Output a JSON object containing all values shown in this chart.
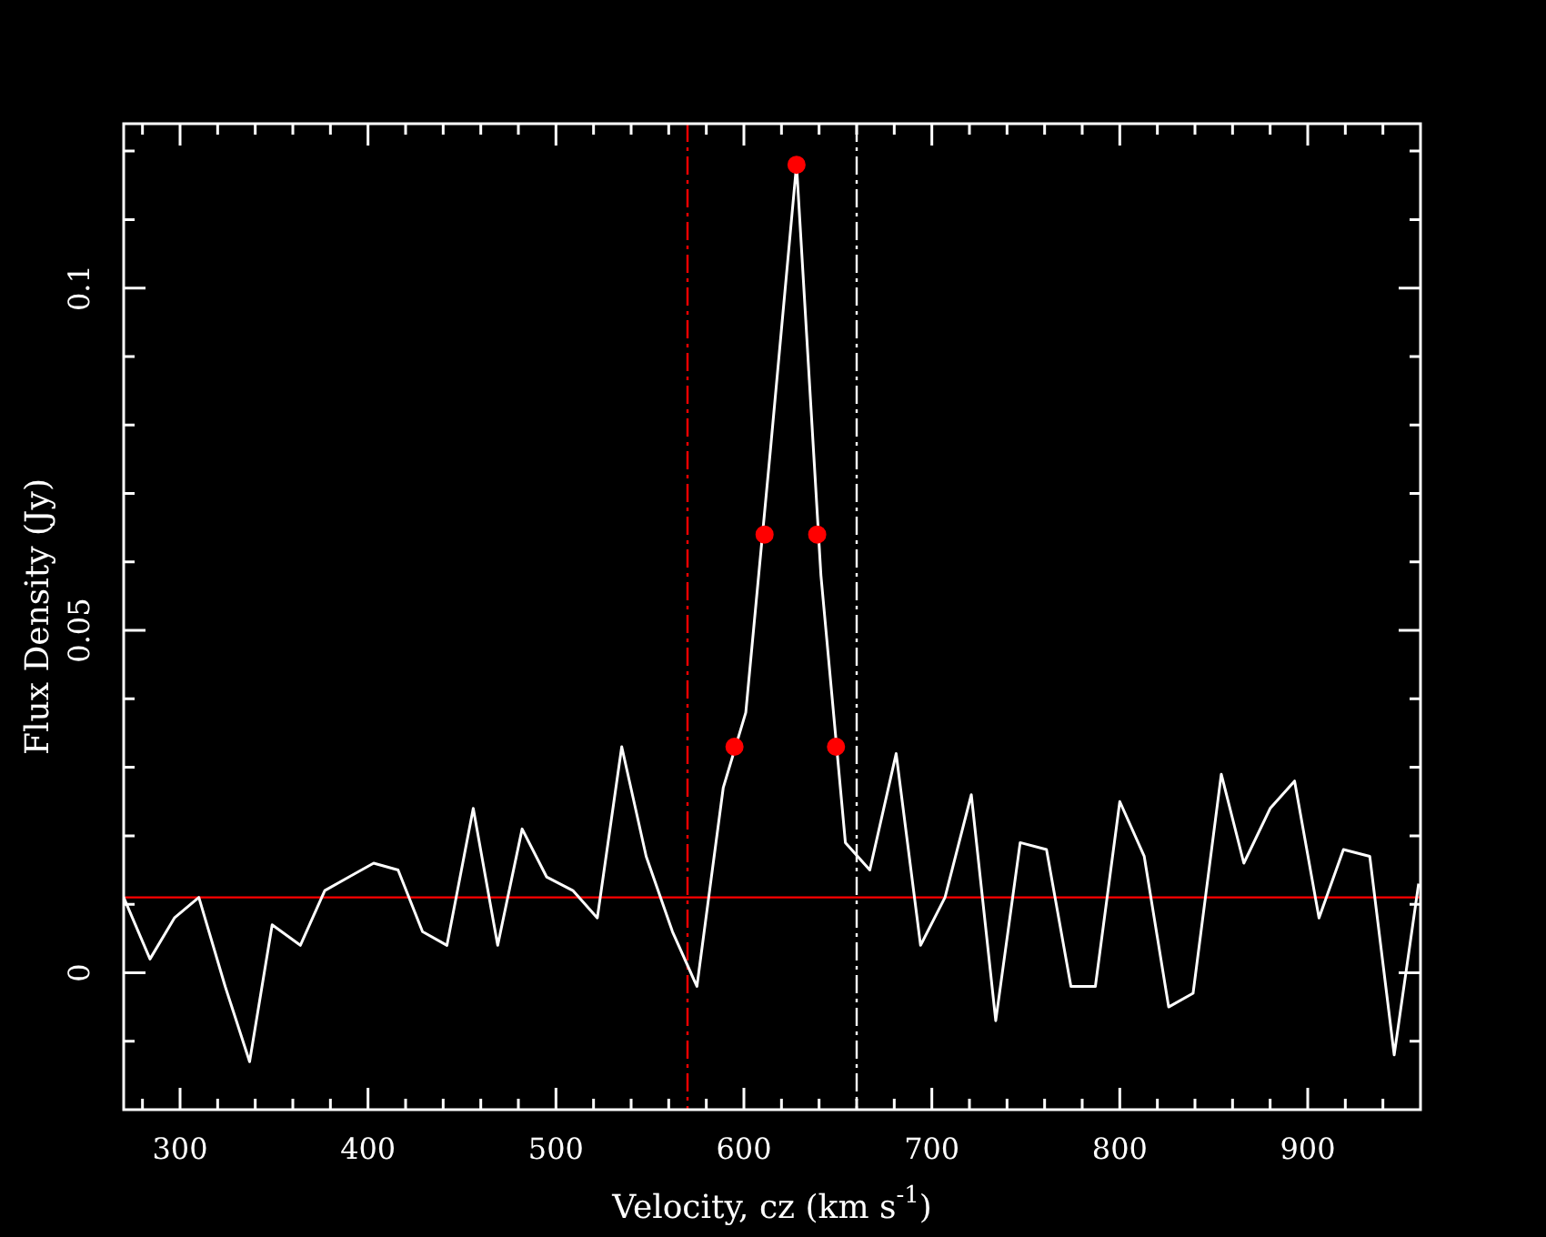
{
  "chart_data": {
    "type": "line",
    "xlabel": "Velocity, cz (km s$^{-1}$)",
    "ylabel": "Flux Density (Jy)",
    "xlim": [
      270,
      960
    ],
    "ylim": [
      -0.02,
      0.124
    ],
    "xticks": [
      {
        "value": 280,
        "label": null
      },
      300,
      {
        "value": 320,
        "label": null
      },
      {
        "value": 340,
        "label": null
      },
      {
        "value": 360,
        "label": null
      },
      {
        "value": 380,
        "label": null
      },
      400,
      {
        "value": 420,
        "label": null
      },
      {
        "value": 440,
        "label": null
      },
      {
        "value": 460,
        "label": null
      },
      {
        "value": 480,
        "label": null
      },
      500,
      {
        "value": 520,
        "label": null
      },
      {
        "value": 540,
        "label": null
      },
      {
        "value": 560,
        "label": null
      },
      {
        "value": 580,
        "label": null
      },
      600,
      {
        "value": 620,
        "label": null
      },
      {
        "value": 640,
        "label": null
      },
      {
        "value": 660,
        "label": null
      },
      {
        "value": 680,
        "label": null
      },
      700,
      {
        "value": 720,
        "label": null
      },
      {
        "value": 740,
        "label": null
      },
      {
        "value": 760,
        "label": null
      },
      {
        "value": 780,
        "label": null
      },
      800,
      {
        "value": 820,
        "label": null
      },
      {
        "value": 840,
        "label": null
      },
      {
        "value": 860,
        "label": null
      },
      {
        "value": 880,
        "label": null
      },
      900,
      {
        "value": 920,
        "label": null
      },
      {
        "value": 940,
        "label": null
      }
    ],
    "yticks": [
      {
        "value": -0.01,
        "label": null
      },
      0,
      {
        "value": 0.01,
        "label": null
      },
      {
        "value": 0.02,
        "label": null
      },
      {
        "value": 0.03,
        "label": null
      },
      {
        "value": 0.04,
        "label": null
      },
      0.05,
      {
        "value": 0.06,
        "label": null
      },
      {
        "value": 0.07,
        "label": null
      },
      {
        "value": 0.08,
        "label": null
      },
      {
        "value": 0.09,
        "label": null
      },
      0.1,
      {
        "value": 0.11,
        "label": null
      },
      {
        "value": 0.12,
        "label": null
      }
    ],
    "series": [
      {
        "type": "line",
        "color": "#ffffff",
        "x": [
          270,
          284,
          297,
          310,
          324,
          337,
          349,
          364,
          377,
          390,
          403,
          416,
          429,
          442,
          456,
          469,
          482,
          495,
          509,
          522,
          535,
          548,
          562,
          575,
          589,
          601,
          614,
          628,
          641,
          654,
          667,
          681,
          694,
          707,
          721,
          734,
          747,
          761,
          774,
          787,
          800,
          813,
          826,
          839,
          854,
          866,
          880,
          893,
          906,
          919,
          933,
          946,
          959
        ],
        "values": [
          0.011,
          0.002,
          0.008,
          0.011,
          -0.002,
          -0.013,
          0.007,
          0.004,
          0.012,
          0.014,
          0.016,
          0.015,
          0.006,
          0.004,
          0.024,
          0.004,
          0.021,
          0.014,
          0.012,
          0.008,
          0.033,
          0.017,
          0.006,
          -0.002,
          0.027,
          0.038,
          0.076,
          0.118,
          0.058,
          0.019,
          0.015,
          0.032,
          0.004,
          0.011,
          0.026,
          -0.007,
          0.019,
          0.018,
          -0.002,
          -0.002,
          0.025,
          0.017,
          -0.005,
          -0.003,
          0.029,
          0.016,
          0.024,
          0.028,
          0.008,
          0.018,
          0.017,
          -0.012,
          0.013
        ]
      },
      {
        "type": "scatter",
        "color": "#ff0000",
        "marker": "circle",
        "x": [
          595,
          611,
          628,
          639,
          649
        ],
        "values": [
          0.033,
          0.064,
          0.118,
          0.064,
          0.033
        ]
      }
    ],
    "ref_lines": [
      {
        "axis": "y",
        "value": 0.011,
        "color": "#ff0000"
      },
      {
        "axis": "x",
        "value": 570,
        "color": "#ff0000",
        "line_style": "dashed"
      },
      {
        "axis": "x",
        "value": 660,
        "color": "#ffffff",
        "line_style": "dashed"
      }
    ]
  }
}
